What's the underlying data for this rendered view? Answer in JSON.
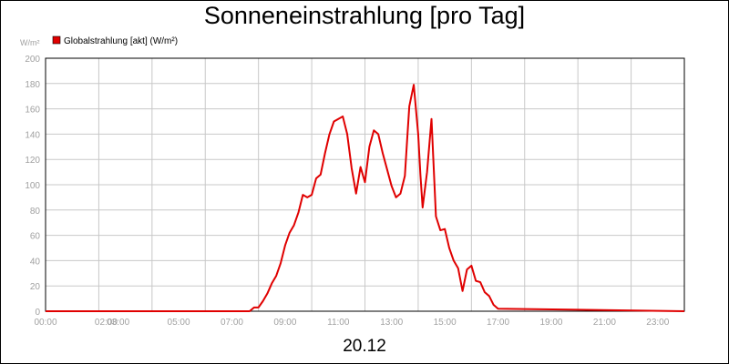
{
  "chart_data": {
    "type": "line",
    "title": "Sonneneinstrahlung [pro Tag]",
    "ylabel": "W/m²",
    "xlabel": "20.12",
    "ylim": [
      0,
      200
    ],
    "xlim": [
      "00:00",
      "24:00"
    ],
    "y_ticks": [
      "0",
      "20",
      "40",
      "60",
      "80",
      "100",
      "120",
      "140",
      "160",
      "180",
      "200"
    ],
    "x_ticks": [
      "00:00",
      "02:00",
      "03:00",
      "05:00",
      "07:00",
      "09:00",
      "11:00",
      "13:00",
      "15:00",
      "17:00",
      "19:00",
      "21:00",
      "23:00"
    ],
    "grid": true,
    "legend": "top-left",
    "colors": {
      "series": "#e00000",
      "grid": "#c8c8c8",
      "tick_text": "#a0a0a0"
    },
    "series": [
      {
        "name": "Globalstrahlung [akt] (W/m²)",
        "x": [
          "00:00",
          "07:40",
          "07:50",
          "08:00",
          "08:10",
          "08:20",
          "08:30",
          "08:40",
          "08:50",
          "09:00",
          "09:10",
          "09:20",
          "09:30",
          "09:40",
          "09:50",
          "10:00",
          "10:10",
          "10:20",
          "10:30",
          "10:40",
          "10:50",
          "11:00",
          "11:10",
          "11:20",
          "11:30",
          "11:40",
          "11:50",
          "12:00",
          "12:10",
          "12:20",
          "12:30",
          "12:40",
          "12:50",
          "13:00",
          "13:10",
          "13:20",
          "13:30",
          "13:35",
          "13:40",
          "13:50",
          "14:00",
          "14:05",
          "14:10",
          "14:20",
          "14:30",
          "14:40",
          "14:50",
          "15:00",
          "15:10",
          "15:20",
          "15:30",
          "15:40",
          "15:50",
          "16:00",
          "16:10",
          "16:20",
          "16:30",
          "16:40",
          "16:50",
          "17:00",
          "24:00"
        ],
        "values": [
          0,
          0,
          3,
          3,
          8,
          14,
          22,
          28,
          38,
          52,
          62,
          68,
          78,
          92,
          90,
          92,
          105,
          108,
          125,
          140,
          150,
          152,
          154,
          140,
          113,
          93,
          114,
          102,
          130,
          143,
          140,
          125,
          112,
          99,
          90,
          93,
          107,
          135,
          162,
          179,
          140,
          108,
          82,
          110,
          152,
          75,
          64,
          65,
          50,
          40,
          34,
          16,
          33,
          36,
          24,
          23,
          15,
          12,
          5,
          2,
          0
        ]
      }
    ]
  }
}
